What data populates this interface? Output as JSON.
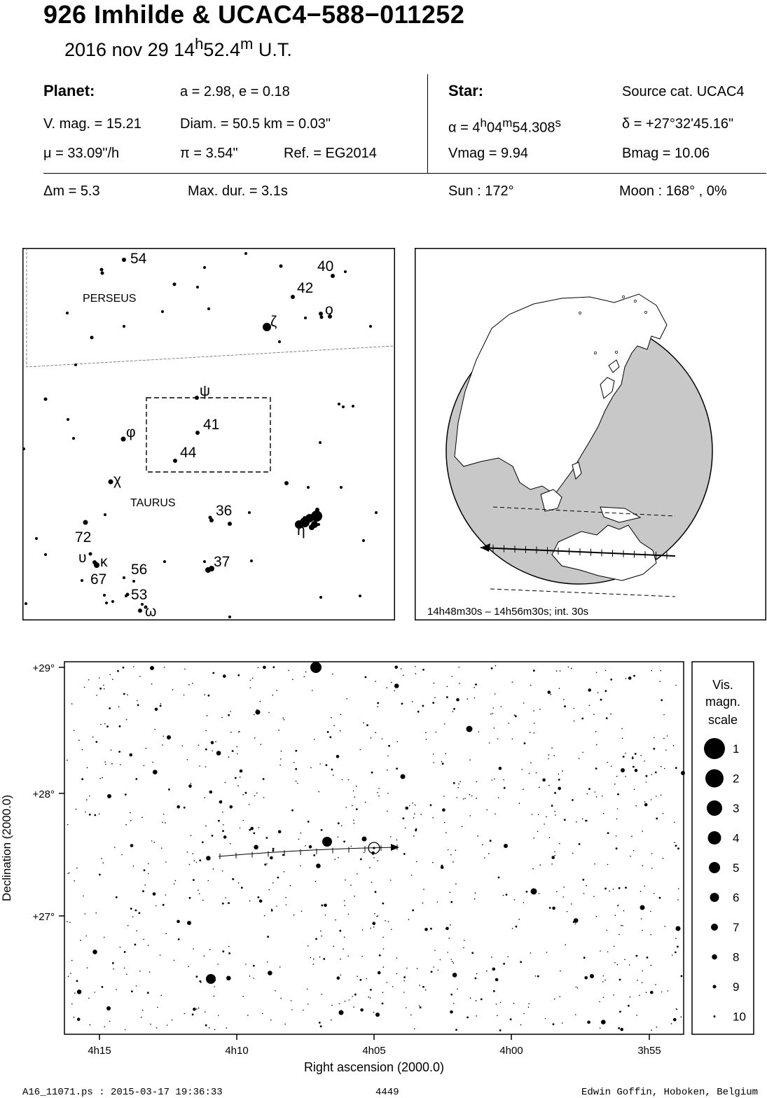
{
  "header": {
    "title": "926 Imhilde  &  UCAC4−588−011252",
    "date": "2016 nov 29  14",
    "date_h": "h",
    "date_min": "52.4",
    "date_m": "m",
    "date_ut": " U.T."
  },
  "planet": {
    "heading": "Planet:",
    "orbit": "a = 2.98, e = 0.18",
    "vmag": "V. mag. = 15.21",
    "diam": "Diam. = 50.5 km = 0.03\"",
    "mu": "μ =  33.09\"/h",
    "pi": "π =  3.54\"",
    "ref": "Ref. = EG2014"
  },
  "star": {
    "heading": "Star:",
    "source": "Source cat.  UCAC4",
    "alpha_pre": "α =  4",
    "alpha_h": "h",
    "alpha_m_val": "04",
    "alpha_m": "m",
    "alpha_s_val": "54.308",
    "alpha_s": "s",
    "delta": "δ = +27°32'45.16\"",
    "vmag": "Vmag =  9.94",
    "bmag": "Bmag = 10.06"
  },
  "event": {
    "dm": "Δm = 5.3",
    "maxdur": "Max. dur. = 3.1s",
    "sun": "Sun : 172°",
    "moon": "Moon : 168° ,  0%"
  },
  "finder": {
    "const_perseus": "PERSEUS",
    "const_taurus": "TAURUS",
    "labels": [
      "54",
      "40",
      "42",
      "ο",
      "ζ",
      "ψ",
      "41",
      "φ",
      "44",
      "χ",
      "36",
      "η",
      "72",
      "υ",
      "κ",
      "56",
      "67",
      "37",
      "53",
      "ω"
    ]
  },
  "globe": {
    "caption": "14h48m30s – 14h56m30s; int. 30s",
    "colors": {
      "land": "#ffffff",
      "sea": "#c8c8c8"
    }
  },
  "skymap": {
    "dec_labels": [
      "+29°",
      "+28°",
      "+27°"
    ],
    "ra_labels": [
      "4h15",
      "4h10",
      "4h05",
      "4h00",
      "3h55"
    ],
    "ylabel": "Declination (2000.0)",
    "xlabel": "Right ascension (2000.0)"
  },
  "legend": {
    "title": [
      "Vis.",
      "magn.",
      "scale"
    ],
    "mags": [
      "1",
      "2",
      "3",
      "4",
      "5",
      "6",
      "7",
      "8",
      "9",
      "10"
    ]
  },
  "footer": {
    "file": "A16_11071.ps : 2015-03-17 19:36:33",
    "number": "4449",
    "author": "Edwin Goffin, Hoboken, Belgium"
  }
}
